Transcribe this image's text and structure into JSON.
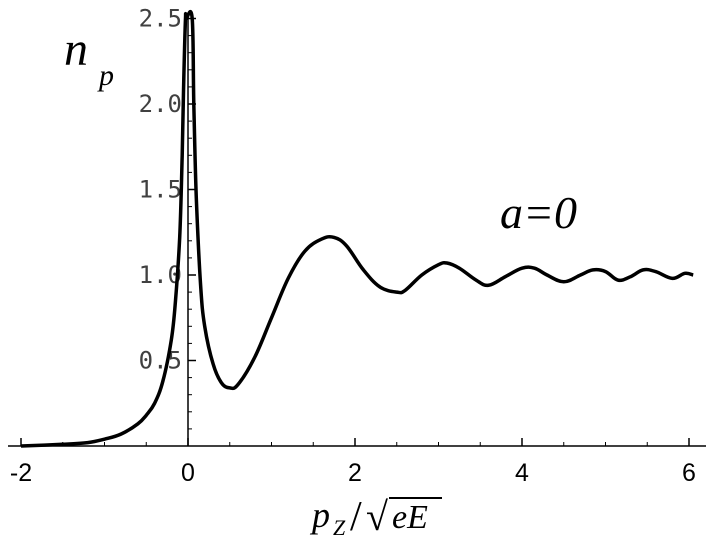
{
  "chart_data": {
    "type": "line",
    "xlabel_main": "p",
    "xlabel_sub": "Z",
    "xlabel_sep": "/",
    "xlabel_root": "√",
    "xlabel_radicand": "eE",
    "ylabel_main": "n",
    "ylabel_sub": "p",
    "annotation": "a=0",
    "xlim": [
      -2.5,
      6.15
    ],
    "ylim": [
      0,
      2.5
    ],
    "x_ticks": [
      -2,
      0,
      2,
      4,
      6
    ],
    "x_tick_labels": [
      "-2",
      "0",
      "2",
      "4",
      "6"
    ],
    "y_ticks": [
      0.5,
      1.0,
      1.5,
      2.0,
      2.5
    ],
    "y_tick_labels": [
      "0.5",
      "1.0",
      "1.5",
      "2.0",
      "2.5"
    ],
    "series": [
      {
        "x": [
          -2.0,
          -1.5,
          -1.2,
          -1.0,
          -0.8,
          -0.6,
          -0.5,
          -0.4,
          -0.3,
          -0.2,
          -0.15,
          -0.1,
          -0.07,
          -0.05,
          -0.03,
          -0.02,
          0.05,
          0.07,
          0.1,
          0.15,
          0.2,
          0.3,
          0.4,
          0.5,
          0.6,
          0.8,
          1.0,
          1.2,
          1.4,
          1.6,
          1.75,
          1.9,
          2.1,
          2.3,
          2.5,
          2.6,
          2.8,
          3.0,
          3.1,
          3.25,
          3.45,
          3.6,
          3.8,
          4.0,
          4.15,
          4.3,
          4.5,
          4.7,
          4.85,
          5.0,
          5.15,
          5.3,
          5.45,
          5.6,
          5.8,
          5.95,
          6.05
        ],
        "y": [
          0.0,
          0.01,
          0.02,
          0.04,
          0.07,
          0.13,
          0.18,
          0.25,
          0.38,
          0.62,
          0.85,
          1.22,
          1.7,
          2.15,
          2.5,
          2.5,
          2.5,
          2.0,
          1.45,
          0.95,
          0.7,
          0.48,
          0.37,
          0.34,
          0.36,
          0.52,
          0.75,
          0.98,
          1.14,
          1.21,
          1.22,
          1.17,
          1.03,
          0.93,
          0.9,
          0.91,
          1.0,
          1.06,
          1.07,
          1.04,
          0.97,
          0.94,
          0.99,
          1.04,
          1.04,
          1.0,
          0.96,
          1.0,
          1.03,
          1.02,
          0.97,
          0.99,
          1.03,
          1.02,
          0.98,
          1.01,
          1.0
        ]
      }
    ]
  }
}
